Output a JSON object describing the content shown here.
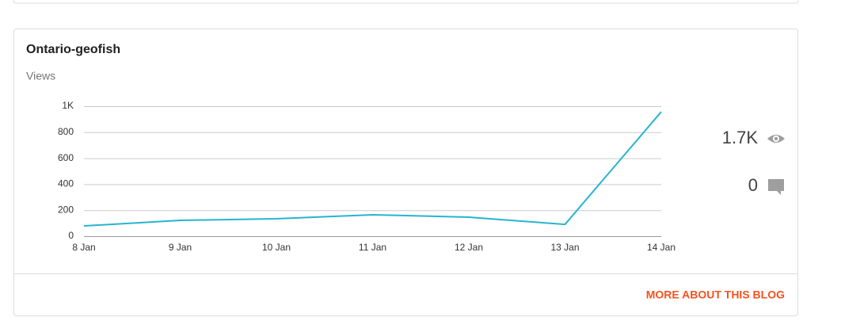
{
  "card": {
    "title": "Ontario-geofish",
    "subtitle": "Views",
    "views_total": "1.7K",
    "comments_total": "0",
    "link": "MORE ABOUT THIS BLOG"
  },
  "chart_data": {
    "type": "line",
    "categories": [
      "8 Jan",
      "9 Jan",
      "10 Jan",
      "11 Jan",
      "12 Jan",
      "13 Jan",
      "14 Jan"
    ],
    "series": [
      {
        "name": "Views",
        "color": "#26b5cf",
        "values": [
          79,
          122,
          134,
          165,
          146,
          91,
          957
        ]
      }
    ],
    "ylim": [
      0,
      1000
    ],
    "yticks": [
      0,
      200,
      400,
      600,
      800,
      {
        "value": 1000,
        "label": "1K"
      }
    ],
    "grid": true
  }
}
